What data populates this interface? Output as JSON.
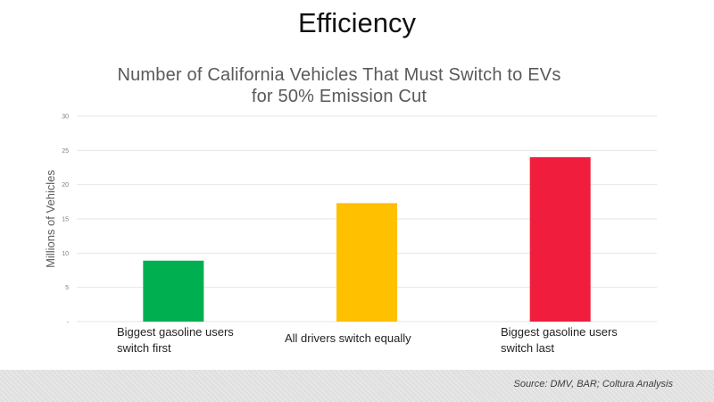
{
  "slide": {
    "title": "Efficiency",
    "source": "Source: DMV, BAR; Coltura Analysis"
  },
  "colors": {
    "gridline": "#e6e6e6",
    "footer": "#e0e0e0"
  },
  "chart_data": {
    "type": "bar",
    "title": "Number of California Vehicles That Must Switch to EVs\nfor 50% Emission Cut",
    "xlabel": "",
    "ylabel": "Millions of Vehicles",
    "ylim": [
      0,
      30
    ],
    "yticks": [
      0,
      5,
      10,
      15,
      20,
      25,
      30
    ],
    "ytick_labels": [
      "-",
      "5",
      "10",
      "15",
      "20",
      "25",
      "30"
    ],
    "grid": true,
    "categories": [
      "Biggest gasoline users\nswitch first",
      "All drivers switch equally",
      "Biggest gasoline users\nswitch last"
    ],
    "values": [
      8.9,
      17.3,
      24.0
    ],
    "bar_colors": [
      "#00b050",
      "#ffc000",
      "#f01e3c"
    ]
  }
}
